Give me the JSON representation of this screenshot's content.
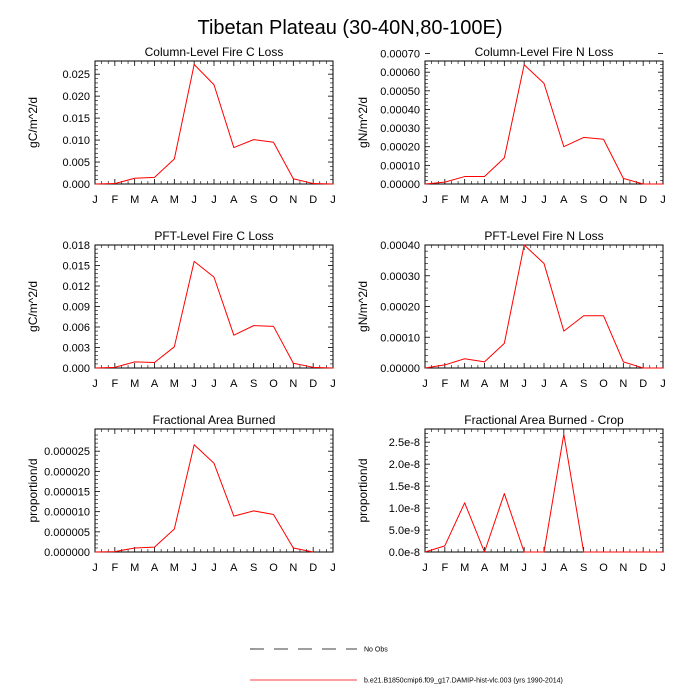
{
  "main_title": "Tibetan Plateau (30-40N,80-100E)",
  "colors": {
    "model": "#ff0000",
    "obs": "#000000",
    "axis": "#000000"
  },
  "legend": {
    "obs_label": "No Obs",
    "model_label": "b.e21.B1850cmip6.f09_g17.DAMIP-hist-vlc.003 (yrs 1990-2014)"
  },
  "chart_data": [
    {
      "type": "line",
      "title": "Column-Level Fire C Loss",
      "ylabel": "gC/m^2/d",
      "x": [
        "J",
        "F",
        "M",
        "A",
        "M",
        "J",
        "J",
        "A",
        "S",
        "O",
        "N",
        "D",
        "J"
      ],
      "ylim": [
        0,
        0.028
      ],
      "yticks": [
        "0.000",
        "0.005",
        "0.010",
        "0.015",
        "0.020",
        "0.025"
      ],
      "ytick_values": [
        0,
        0.005,
        0.01,
        0.015,
        0.02,
        0.025
      ],
      "series": [
        {
          "name": "model",
          "values": [
            0.0,
            0.0001,
            0.0013,
            0.0015,
            0.0057,
            0.0272,
            0.0226,
            0.0083,
            0.0101,
            0.0095,
            0.0012,
            0.0001,
            0.0
          ]
        }
      ]
    },
    {
      "type": "line",
      "title": "Column-Level Fire N Loss",
      "ylabel": "gN/m^2/d",
      "x": [
        "J",
        "F",
        "M",
        "A",
        "M",
        "J",
        "J",
        "A",
        "S",
        "O",
        "N",
        "D",
        "J"
      ],
      "ylim": [
        0,
        0.00066
      ],
      "yticks": [
        "0.00000",
        "0.00010",
        "0.00020",
        "0.00030",
        "0.00040",
        "0.00050",
        "0.00060",
        "0.00070"
      ],
      "ytick_values": [
        0,
        0.0001,
        0.0002,
        0.0003,
        0.0004,
        0.0005,
        0.0006,
        0.0007
      ],
      "series": [
        {
          "name": "model",
          "values": [
            0.0,
            1e-05,
            4e-05,
            4e-05,
            0.00014,
            0.00064,
            0.00054,
            0.0002,
            0.00025,
            0.00024,
            3e-05,
            0.0,
            0.0
          ]
        }
      ]
    },
    {
      "type": "line",
      "title": "PFT-Level Fire C Loss",
      "ylabel": "gC/m^2/d",
      "x": [
        "J",
        "F",
        "M",
        "A",
        "M",
        "J",
        "J",
        "A",
        "S",
        "O",
        "N",
        "D",
        "J"
      ],
      "ylim": [
        0,
        0.018
      ],
      "yticks": [
        "0.000",
        "0.003",
        "0.006",
        "0.009",
        "0.012",
        "0.015",
        "0.018"
      ],
      "ytick_values": [
        0,
        0.003,
        0.006,
        0.009,
        0.012,
        0.015,
        0.018
      ],
      "series": [
        {
          "name": "model",
          "values": [
            0.0,
            0.0001,
            0.0009,
            0.0008,
            0.0031,
            0.0156,
            0.0133,
            0.0048,
            0.0062,
            0.0061,
            0.0007,
            0.0001,
            0.0
          ]
        }
      ]
    },
    {
      "type": "line",
      "title": "PFT-Level Fire N Loss",
      "ylabel": "gN/m^2/d",
      "x": [
        "J",
        "F",
        "M",
        "A",
        "M",
        "J",
        "J",
        "A",
        "S",
        "O",
        "N",
        "D",
        "J"
      ],
      "ylim": [
        0,
        0.0004
      ],
      "yticks": [
        "0.00000",
        "0.00010",
        "0.00020",
        "0.00030",
        "0.00040"
      ],
      "ytick_values": [
        0,
        0.0001,
        0.0002,
        0.0003,
        0.0004
      ],
      "series": [
        {
          "name": "model",
          "values": [
            0.0,
            1e-05,
            3e-05,
            2e-05,
            8e-05,
            0.0004,
            0.00034,
            0.00012,
            0.00017,
            0.00017,
            2e-05,
            0.0,
            0.0
          ]
        }
      ]
    },
    {
      "type": "line",
      "title": "Fractional Area Burned",
      "ylabel": "proportion/d",
      "x": [
        "J",
        "F",
        "M",
        "A",
        "M",
        "J",
        "J",
        "A",
        "S",
        "O",
        "N",
        "D",
        "J"
      ],
      "ylim": [
        0,
        3.05e-05
      ],
      "yticks": [
        "0.000000",
        "0.000005",
        "0.000010",
        "0.000015",
        "0.000020",
        "0.000025"
      ],
      "ytick_values": [
        0,
        5e-06,
        1e-05,
        1.5e-05,
        2e-05,
        2.5e-05
      ],
      "series": [
        {
          "name": "model",
          "values": [
            0.0,
            1e-07,
            1e-06,
            1.2e-06,
            5.7e-06,
            2.66e-05,
            2.2e-05,
            8.9e-06,
            1.02e-05,
            9.3e-06,
            1e-06,
            0.0,
            null
          ]
        }
      ]
    },
    {
      "type": "line",
      "title": "Fractional Area Burned - Crop",
      "ylabel": "proportion/d",
      "x": [
        "J",
        "F",
        "M",
        "A",
        "M",
        "J",
        "J",
        "A",
        "S",
        "O",
        "N",
        "D",
        "J"
      ],
      "ylim": [
        0,
        2.8e-08
      ],
      "yticks": [
        "0.0e-8",
        "5.0e-9",
        "1.0e-8",
        "1.5e-8",
        "2.0e-8",
        "2.5e-8"
      ],
      "ytick_values": [
        0,
        5e-09,
        1e-08,
        1.5e-08,
        2e-08,
        2.5e-08
      ],
      "series": [
        {
          "name": "model",
          "values": [
            0,
            1.4e-09,
            1.12e-08,
            0,
            1.33e-08,
            0,
            0,
            2.68e-08,
            0,
            0,
            0,
            0,
            0
          ]
        }
      ]
    }
  ]
}
